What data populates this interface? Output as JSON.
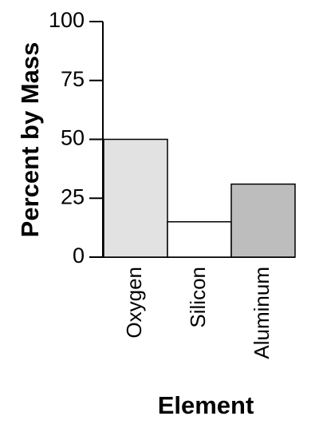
{
  "chart_data": {
    "type": "bar",
    "x_label": "Element",
    "y_label": "Percent by Mass",
    "categories": [
      "Oxygen",
      "Silicon",
      "Aluminum"
    ],
    "values": [
      50,
      15,
      31
    ],
    "colors": [
      "#e2e2e2",
      "#ffffff",
      "#bdbdbd"
    ],
    "ylim": [
      0,
      100
    ],
    "yticks": [
      0,
      25,
      50,
      75,
      100
    ],
    "grid": false
  }
}
